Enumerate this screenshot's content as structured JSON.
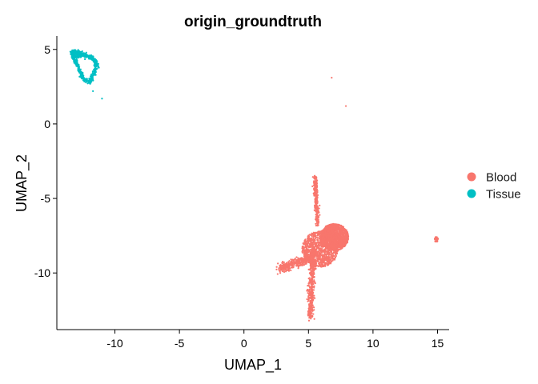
{
  "chart_data": {
    "type": "scatter",
    "title": "origin_groundtruth",
    "xlabel": "UMAP_1",
    "ylabel": "UMAP_2",
    "xlim": [
      -14.5,
      15.9
    ],
    "ylim": [
      -13.8,
      5.9
    ],
    "x_ticks": [
      -10,
      -5,
      0,
      5,
      10,
      15
    ],
    "y_ticks": [
      5,
      0,
      -5,
      -10
    ],
    "x_tick_labels": [
      "-10",
      "-5",
      "0",
      "5",
      "10",
      "15"
    ],
    "y_tick_labels": [
      "5",
      "0",
      "-5",
      "-10"
    ],
    "grid": false,
    "legend_position": "right",
    "series": [
      {
        "name": "Blood",
        "color": "#F8766D",
        "clusters": [
          {
            "shape": "blob",
            "center": [
              7.0,
              -7.6
            ],
            "radius": [
              1.1,
              0.9
            ],
            "count": 1500
          },
          {
            "shape": "blob",
            "center": [
              5.9,
              -8.4
            ],
            "radius": [
              1.4,
              1.2
            ],
            "count": 900
          },
          {
            "shape": "segment",
            "from": [
              5.5,
              -3.5
            ],
            "to": [
              5.7,
              -6.8
            ],
            "width": 0.15,
            "count": 260
          },
          {
            "shape": "segment",
            "from": [
              5.4,
              -8.5
            ],
            "to": [
              5.1,
              -13.0
            ],
            "width": 0.25,
            "count": 420
          },
          {
            "shape": "segment",
            "from": [
              2.7,
              -9.7
            ],
            "to": [
              5.2,
              -9.0
            ],
            "width": 0.3,
            "count": 380
          },
          {
            "shape": "blob",
            "center": [
              14.9,
              -7.75
            ],
            "radius": [
              0.14,
              0.18
            ],
            "count": 30
          },
          {
            "shape": "point",
            "center": [
              6.8,
              3.1
            ]
          },
          {
            "shape": "point",
            "center": [
              7.9,
              1.2
            ]
          }
        ]
      },
      {
        "name": "Tissue",
        "color": "#00BFC4",
        "clusters": [
          {
            "shape": "polyline",
            "path": [
              [
                -13.3,
                4.9
              ],
              [
                -12.6,
                4.7
              ],
              [
                -11.7,
                4.4
              ],
              [
                -11.4,
                4.0
              ],
              [
                -11.6,
                3.4
              ],
              [
                -12.0,
                2.8
              ],
              [
                -12.5,
                3.1
              ],
              [
                -12.9,
                3.9
              ],
              [
                -13.3,
                4.6
              ],
              [
                -13.3,
                4.9
              ]
            ],
            "width": 0.14,
            "count": 520
          },
          {
            "shape": "blob",
            "center": [
              -12.9,
              4.65
            ],
            "radius": [
              0.4,
              0.22
            ],
            "count": 110
          },
          {
            "shape": "point",
            "center": [
              -11.7,
              2.2
            ]
          },
          {
            "shape": "point",
            "center": [
              -11.0,
              1.7
            ]
          }
        ]
      }
    ]
  }
}
